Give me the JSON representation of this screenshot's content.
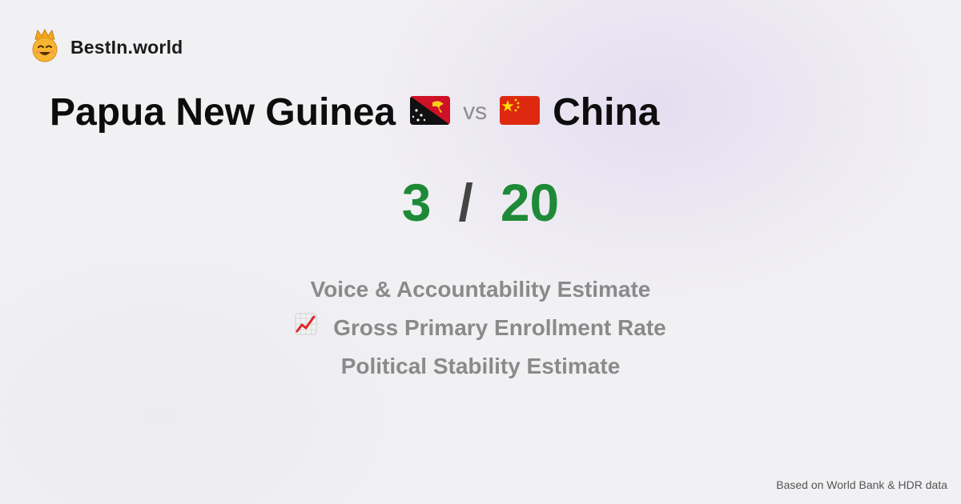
{
  "brand": {
    "name": "BestIn.world",
    "icon": "crown-smiley-icon"
  },
  "comparison": {
    "country_a": {
      "name": "Papua New Guinea",
      "flag": "papua-new-guinea-flag-icon"
    },
    "vs_label": "vs",
    "country_b": {
      "name": "China",
      "flag": "china-flag-icon"
    }
  },
  "score": {
    "a": "3",
    "separator": "/",
    "b": "20",
    "color": "#1e8a37"
  },
  "metrics": [
    {
      "label": "Voice & Accountability Estimate"
    },
    {
      "label": "Gross Primary Enrollment Rate",
      "icon": "chart-increasing-icon"
    },
    {
      "label": "Political Stability Estimate"
    }
  ],
  "footer": {
    "text": "Based on World Bank & HDR data"
  }
}
